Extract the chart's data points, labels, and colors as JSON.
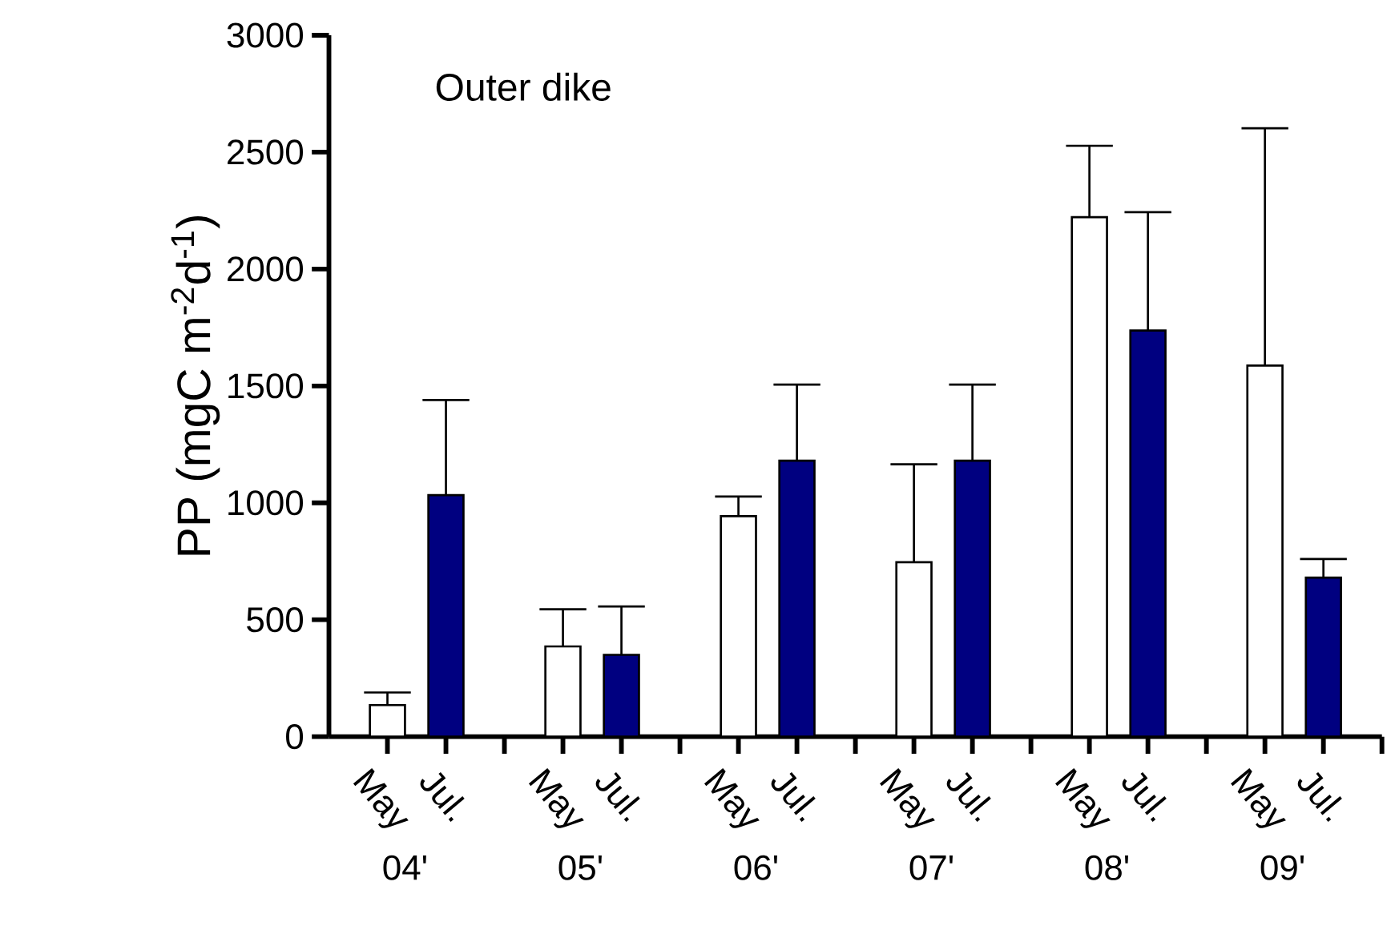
{
  "chart_data": {
    "type": "bar",
    "title": "Outer dike",
    "ylabel": "PP (mgC m$^{-2}$d$^{-1}$)",
    "categories": [
      "04'",
      "05'",
      "06'",
      "07'",
      "08'",
      "09'"
    ],
    "series": [
      {
        "name": "May",
        "color": "#ffffff",
        "values": [
          135,
          386,
          943,
          746,
          2222,
          1587
        ],
        "errors": [
          [
            135,
            189
          ],
          [
            386,
            545
          ],
          [
            943,
            1027
          ],
          [
            746,
            1165
          ],
          [
            2222,
            2527
          ],
          [
            1587,
            2602
          ]
        ]
      },
      {
        "name": "Jul.",
        "color": "#000080",
        "values": [
          1033,
          350,
          1180,
          1180,
          1737,
          680
        ],
        "errors": [
          [
            1033,
            1440
          ],
          [
            350,
            557
          ],
          [
            1180,
            1506
          ],
          [
            1180,
            1506
          ],
          [
            1737,
            2243
          ],
          [
            680,
            760
          ]
        ]
      }
    ],
    "legend": "bottom",
    "ylim": [
      0,
      3000
    ],
    "yticks": [
      0,
      500,
      1000,
      1500,
      2000,
      2500,
      3000
    ]
  }
}
